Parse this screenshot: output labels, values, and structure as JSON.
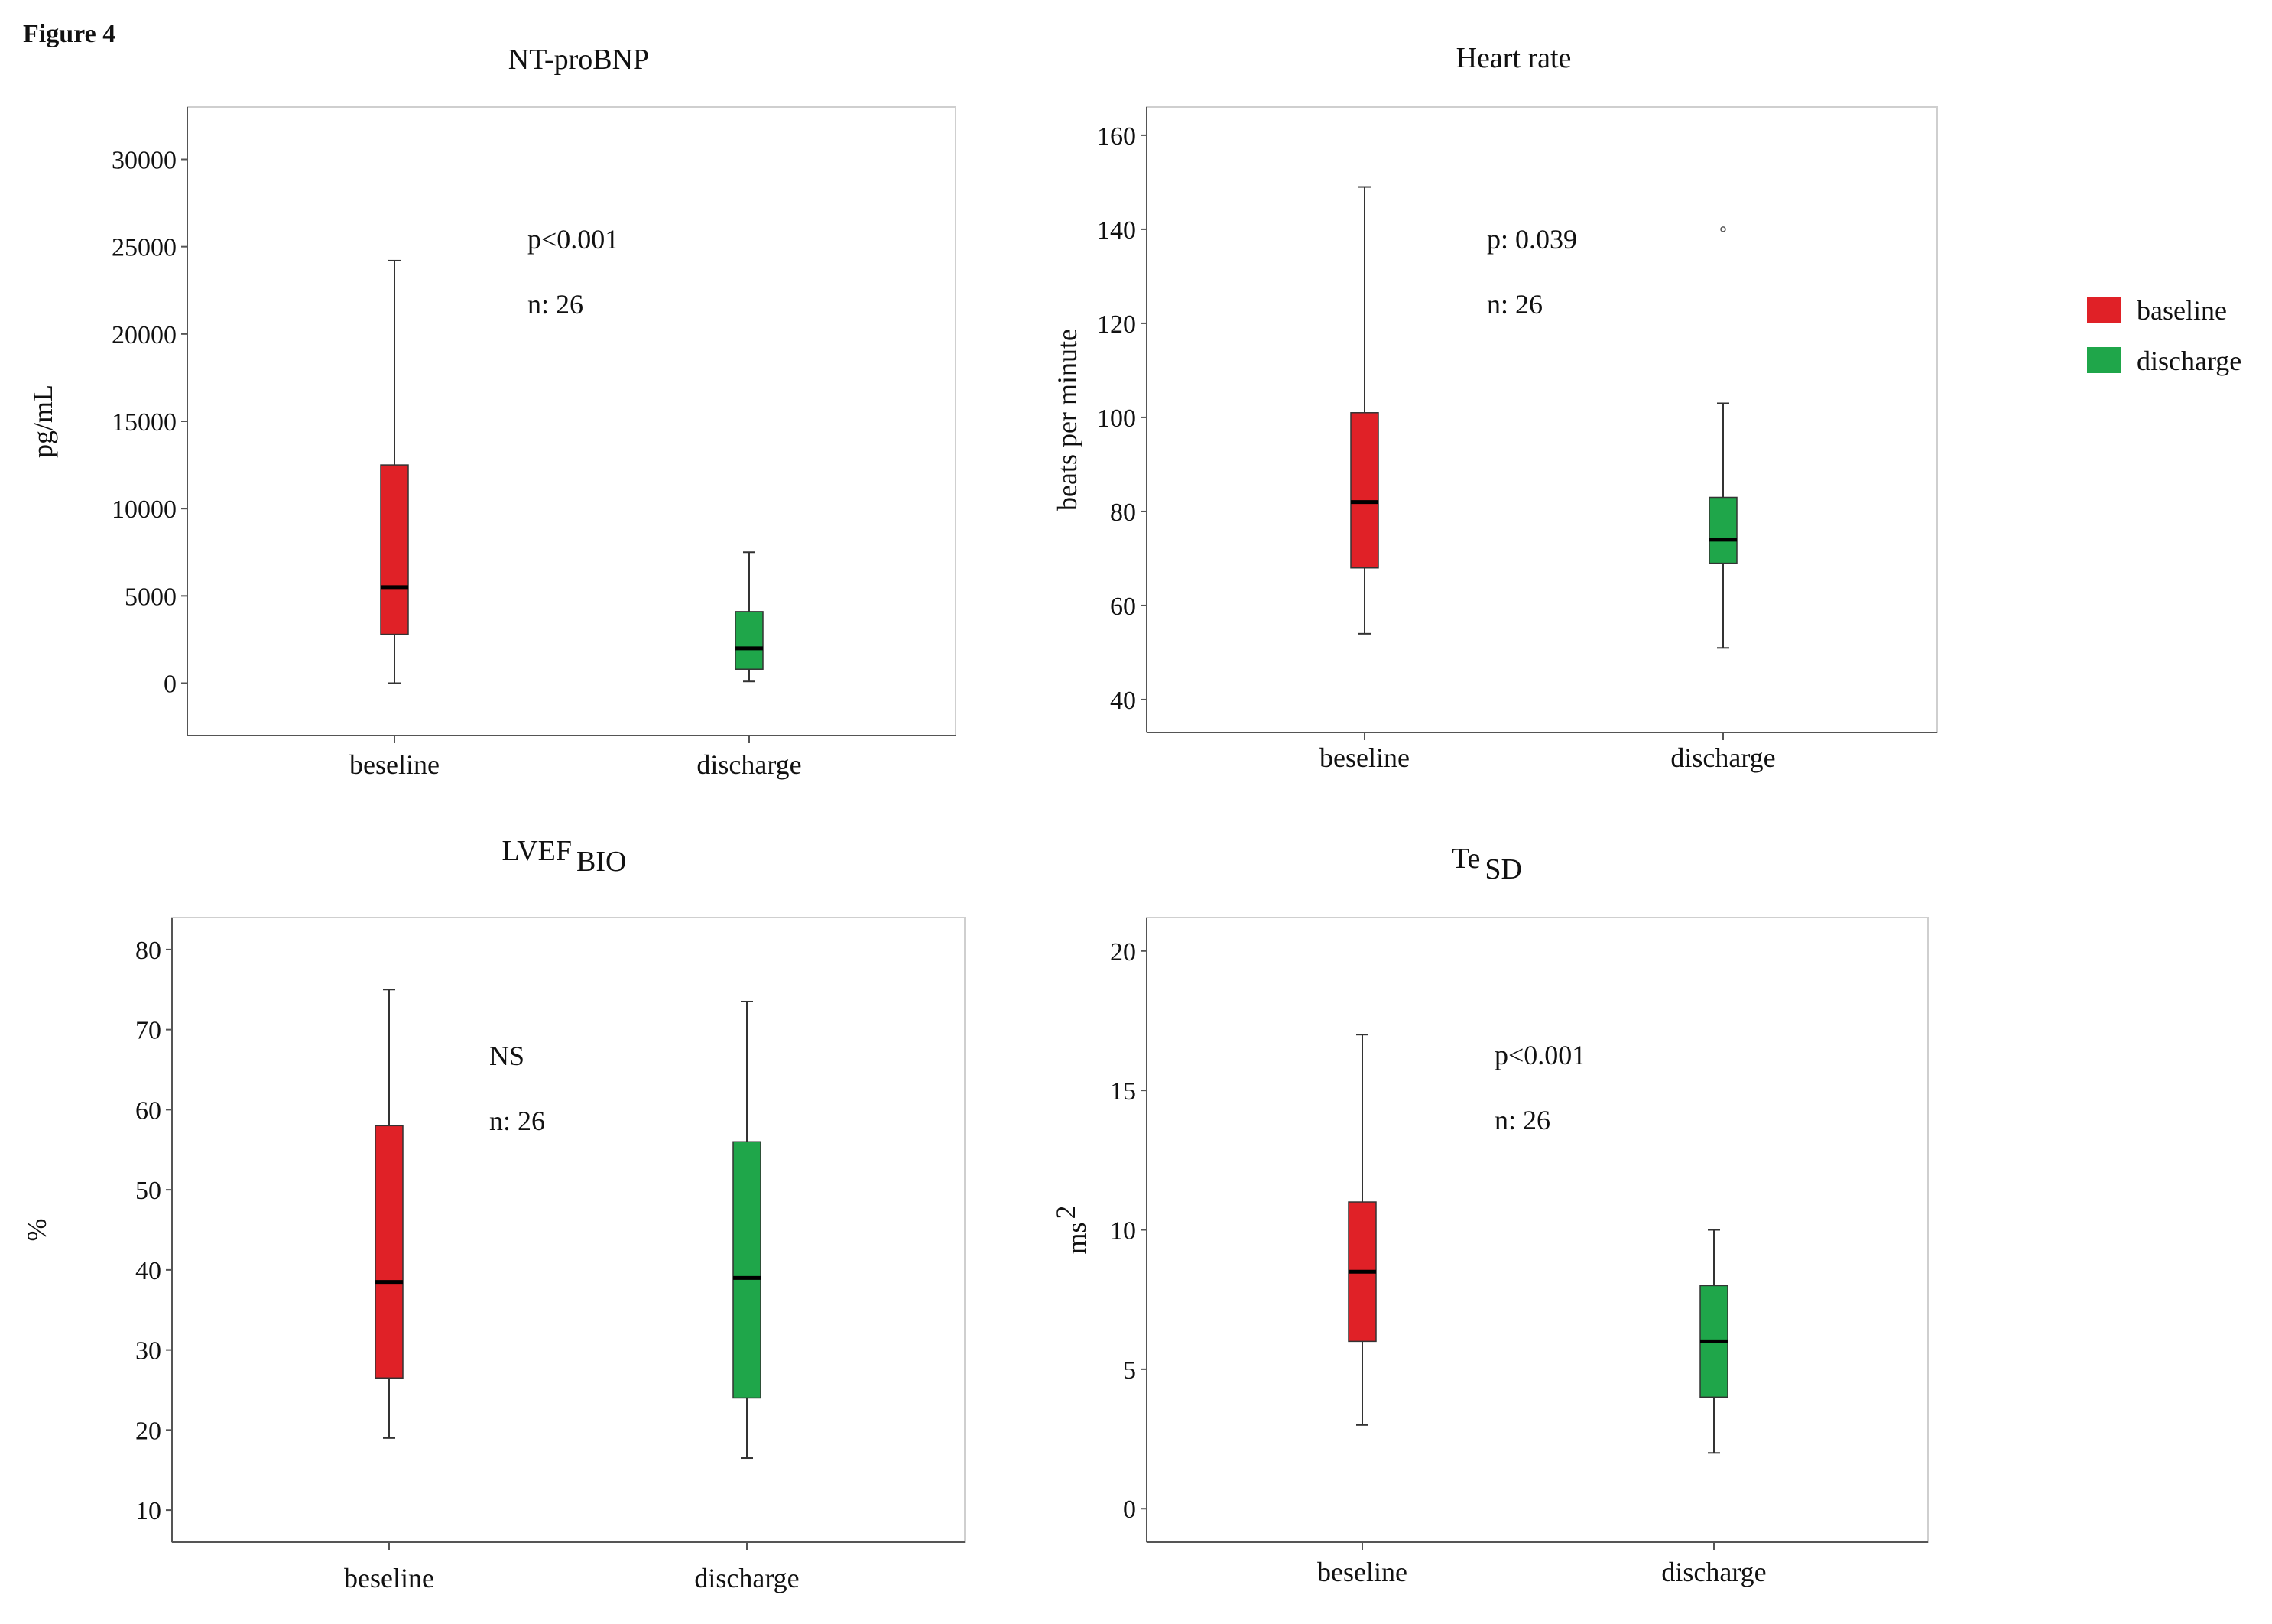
{
  "figure_label": "Figure 4",
  "legend": {
    "items": [
      {
        "label": "baseline",
        "color": "#e02127"
      },
      {
        "label": "discharge",
        "color": "#1fa64a"
      }
    ]
  },
  "chart_data": [
    {
      "type": "box",
      "title": "NT-proBNP",
      "title_sub": "",
      "ylabel": "pg/mL",
      "ylabel_sup": "",
      "ylim": [
        -3000,
        33000
      ],
      "yticks": [
        0,
        5000,
        10000,
        15000,
        20000,
        25000,
        30000
      ],
      "annotation": [
        "p<0.001",
        "n: 26"
      ],
      "categories": [
        "beseline",
        "discharge"
      ],
      "series": [
        {
          "name": "baseline",
          "min": 0,
          "q1": 2800,
          "median": 5500,
          "q3": 12500,
          "max": 24200,
          "outliers": []
        },
        {
          "name": "discharge",
          "min": 100,
          "q1": 800,
          "median": 2000,
          "q3": 4100,
          "max": 7500,
          "outliers": []
        }
      ]
    },
    {
      "type": "box",
      "title": "Heart rate",
      "title_sub": "",
      "ylabel": "beats per minute",
      "ylabel_sup": "",
      "ylim": [
        33,
        166
      ],
      "yticks": [
        40,
        60,
        80,
        100,
        120,
        140,
        160
      ],
      "annotation": [
        "p: 0.039",
        "n: 26"
      ],
      "categories": [
        "beseline",
        "discharge"
      ],
      "series": [
        {
          "name": "baseline",
          "min": 54,
          "q1": 68,
          "median": 82,
          "q3": 101,
          "max": 149,
          "outliers": []
        },
        {
          "name": "discharge",
          "min": 51,
          "q1": 69,
          "median": 74,
          "q3": 83,
          "max": 103,
          "outliers": [
            140
          ]
        }
      ]
    },
    {
      "type": "box",
      "title": "LVEF",
      "title_sub": "BIO",
      "ylabel": "%",
      "ylabel_sup": "",
      "ylim": [
        6,
        84
      ],
      "yticks": [
        10,
        20,
        30,
        40,
        50,
        60,
        70,
        80
      ],
      "annotation": [
        "NS",
        "n: 26"
      ],
      "categories": [
        "beseline",
        "discharge"
      ],
      "series": [
        {
          "name": "baseline",
          "min": 19,
          "q1": 26.5,
          "median": 38.5,
          "q3": 58,
          "max": 75,
          "outliers": []
        },
        {
          "name": "discharge",
          "min": 16.5,
          "q1": 24,
          "median": 39,
          "q3": 56,
          "max": 73.5,
          "outliers": []
        }
      ]
    },
    {
      "type": "box",
      "title": "Te",
      "title_sub": "SD",
      "ylabel": "ms",
      "ylabel_sup": "2",
      "ylim": [
        -1.2,
        21.2
      ],
      "yticks": [
        0,
        5,
        10,
        15,
        20
      ],
      "annotation": [
        "p<0.001",
        "n: 26"
      ],
      "categories": [
        "beseline",
        "discharge"
      ],
      "series": [
        {
          "name": "baseline",
          "min": 3,
          "q1": 6,
          "median": 8.5,
          "q3": 11,
          "max": 17,
          "outliers": []
        },
        {
          "name": "discharge",
          "min": 2,
          "q1": 4,
          "median": 6,
          "q3": 8,
          "max": 10,
          "outliers": []
        }
      ]
    }
  ]
}
